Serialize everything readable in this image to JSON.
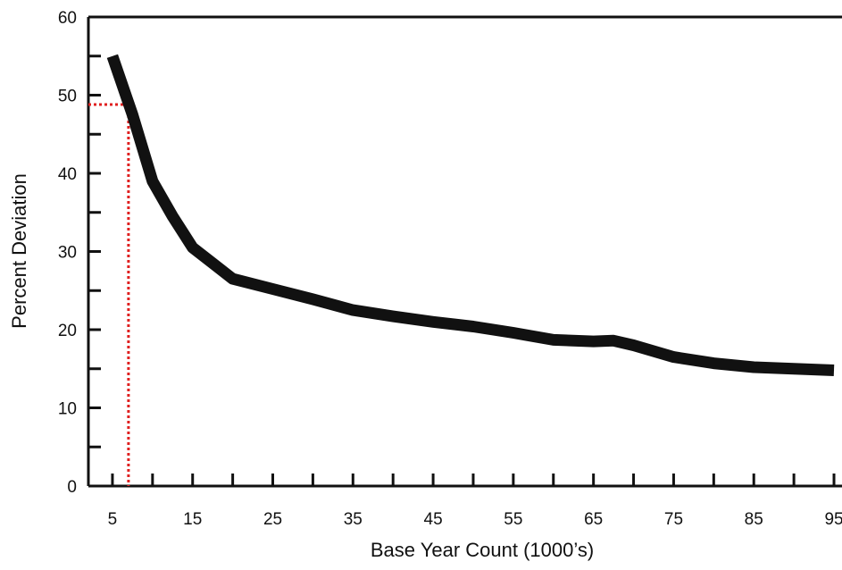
{
  "chart_data": {
    "type": "line",
    "title": "",
    "xlabel": "Base Year Count (1000’s)",
    "ylabel": "Percent Deviation",
    "xlim": [
      2,
      96
    ],
    "ylim": [
      0,
      60
    ],
    "x_ticks": [
      5,
      15,
      25,
      35,
      45,
      55,
      65,
      75,
      85,
      95
    ],
    "x_minor_ticks": [
      10,
      20,
      30,
      40,
      50,
      60,
      70,
      80,
      90
    ],
    "y_ticks": [
      0,
      10,
      20,
      30,
      40,
      50,
      60
    ],
    "y_minor_ticks": [
      5,
      15,
      25,
      35,
      45,
      55
    ],
    "grid": false,
    "series": [
      {
        "name": "",
        "color": "#111111",
        "x": [
          5,
          7.5,
          10,
          12.5,
          15,
          17.5,
          20,
          25,
          30,
          35,
          40,
          45,
          50,
          55,
          60,
          65,
          67.5,
          70,
          75,
          80,
          85,
          90,
          95
        ],
        "y": [
          55,
          47.5,
          39,
          34.5,
          30.5,
          28.5,
          26.5,
          25.2,
          23.9,
          22.5,
          21.7,
          21.0,
          20.4,
          19.6,
          18.7,
          18.5,
          18.6,
          18.0,
          16.5,
          15.7,
          15.2,
          15.0,
          14.8
        ]
      }
    ],
    "reference_point": {
      "x": 7,
      "y": 48.8,
      "color": "#e02020",
      "style": "dotted"
    }
  }
}
